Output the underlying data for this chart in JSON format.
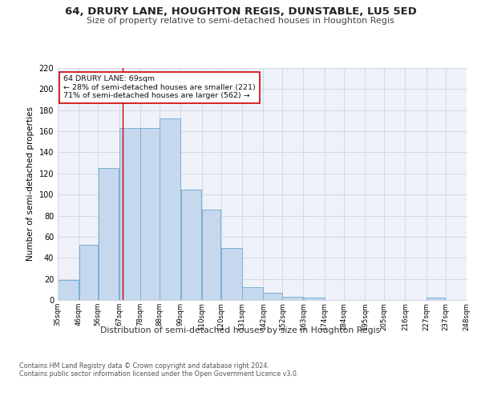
{
  "title_line1": "64, DRURY LANE, HOUGHTON REGIS, DUNSTABLE, LU5 5ED",
  "title_line2": "Size of property relative to semi-detached houses in Houghton Regis",
  "xlabel": "Distribution of semi-detached houses by size in Houghton Regis",
  "ylabel": "Number of semi-detached properties",
  "bar_left_edges": [
    35,
    46,
    56,
    67,
    78,
    88,
    99,
    110,
    120,
    131,
    142,
    152,
    163,
    174,
    184,
    195,
    205,
    216,
    227,
    237
  ],
  "bar_widths": [
    11,
    10,
    11,
    11,
    10,
    11,
    11,
    10,
    11,
    11,
    10,
    11,
    11,
    10,
    11,
    10,
    11,
    11,
    10,
    11
  ],
  "bar_heights": [
    19,
    52,
    125,
    163,
    163,
    172,
    105,
    86,
    49,
    12,
    7,
    3,
    2,
    0,
    0,
    0,
    0,
    0,
    2,
    0
  ],
  "bar_facecolor": "#c5d8ed",
  "bar_edgecolor": "#7aafd4",
  "grid_color": "#d0d8e4",
  "annotation_text": "64 DRURY LANE: 69sqm\n← 28% of semi-detached houses are smaller (221)\n71% of semi-detached houses are larger (562) →",
  "vline_x": 69,
  "vline_color": "#cc0000",
  "annotation_box_edgecolor": "#cc0000",
  "annotation_box_facecolor": "#ffffff",
  "xlim": [
    35,
    248
  ],
  "ylim": [
    0,
    220
  ],
  "yticks": [
    0,
    20,
    40,
    60,
    80,
    100,
    120,
    140,
    160,
    180,
    200,
    220
  ],
  "xticklabels": [
    "35sqm",
    "46sqm",
    "56sqm",
    "67sqm",
    "78sqm",
    "88sqm",
    "99sqm",
    "110sqm",
    "120sqm",
    "131sqm",
    "142sqm",
    "152sqm",
    "163sqm",
    "174sqm",
    "184sqm",
    "195sqm",
    "205sqm",
    "216sqm",
    "227sqm",
    "237sqm",
    "248sqm"
  ],
  "xtick_positions": [
    35,
    46,
    56,
    67,
    78,
    88,
    99,
    110,
    120,
    131,
    142,
    152,
    163,
    174,
    184,
    195,
    205,
    216,
    227,
    237,
    248
  ],
  "footer_text": "Contains HM Land Registry data © Crown copyright and database right 2024.\nContains public sector information licensed under the Open Government Licence v3.0.",
  "bg_color": "#ffffff",
  "plot_bg_color": "#eef2f8"
}
